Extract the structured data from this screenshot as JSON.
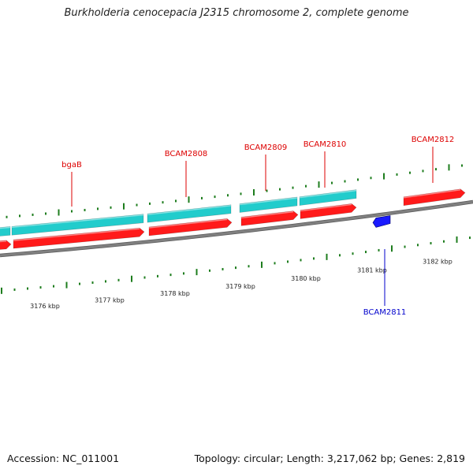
{
  "title": "Burkholderia cenocepacia J2315 chromosome 2, complete genome",
  "footer": {
    "accession": "Accession: NC_011001",
    "summary": "Topology: circular; Length: 3,217,062 bp; Genes: 2,819"
  },
  "colors": {
    "cds_forward": "#ff1a1a",
    "cds_reverse": "#1a1aff",
    "gene_bar": "#22cccc",
    "backbone": "#808080",
    "tick": "#1e7d1e",
    "forward_label": "#dd0000",
    "reverse_label": "#0000cc"
  },
  "scale_labels": [
    "3176 kbp",
    "3177 kbp",
    "3178 kbp",
    "3179 kbp",
    "3180 kbp",
    "3181 kbp",
    "3182 kbp"
  ],
  "gene_labels": [
    {
      "name": "bgaB",
      "strand": "forward"
    },
    {
      "name": "BCAM2808",
      "strand": "forward"
    },
    {
      "name": "BCAM2809",
      "strand": "forward"
    },
    {
      "name": "BCAM2810",
      "strand": "forward"
    },
    {
      "name": "BCAM2812",
      "strand": "forward"
    },
    {
      "name": "BCAM2811",
      "strand": "reverse"
    }
  ]
}
